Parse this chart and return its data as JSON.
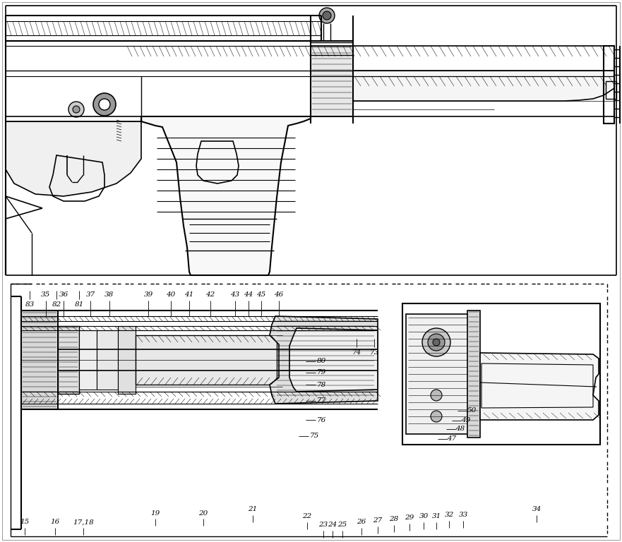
{
  "background_color": "#ffffff",
  "line_color": "#000000",
  "fig_width": 8.81,
  "fig_height": 7.68,
  "dpi": 100,
  "top_labels": [
    [
      "15",
      35,
      758,
      35,
      748
    ],
    [
      "16",
      78,
      758,
      78,
      748
    ],
    [
      "17,18",
      118,
      758,
      118,
      748
    ],
    [
      "19",
      220,
      745,
      220,
      735
    ],
    [
      "20",
      288,
      745,
      288,
      735
    ],
    [
      "21",
      358,
      740,
      358,
      730
    ],
    [
      "22",
      435,
      750,
      435,
      740
    ],
    [
      "23",
      458,
      762,
      458,
      752
    ],
    [
      "24",
      471,
      762,
      471,
      752
    ],
    [
      "25",
      485,
      762,
      485,
      752
    ],
    [
      "26",
      512,
      758,
      512,
      748
    ],
    [
      "27",
      535,
      756,
      535,
      746
    ],
    [
      "28",
      558,
      754,
      558,
      744
    ],
    [
      "29",
      580,
      752,
      580,
      742
    ],
    [
      "30",
      600,
      750,
      600,
      740
    ],
    [
      "31",
      618,
      750,
      618,
      740
    ],
    [
      "32",
      636,
      748,
      636,
      738
    ],
    [
      "33",
      656,
      748,
      656,
      738
    ],
    [
      "34",
      760,
      740,
      760,
      730
    ]
  ],
  "right_labels": [
    [
      "75",
      445,
      618
    ],
    [
      "76",
      455,
      595
    ],
    [
      "77",
      455,
      568
    ],
    [
      "78",
      455,
      545
    ],
    [
      "79",
      455,
      528
    ],
    [
      "80",
      455,
      512
    ]
  ],
  "left_labels": [
    [
      "83",
      42,
      432
    ],
    [
      "82",
      80,
      432
    ],
    [
      "81",
      112,
      432
    ]
  ],
  "mid_labels": [
    [
      "73",
      530,
      500
    ],
    [
      "74",
      505,
      500
    ]
  ],
  "bot_left_labels": [
    [
      "35",
      65,
      418
    ],
    [
      "36",
      90,
      418
    ],
    [
      "37",
      128,
      418
    ],
    [
      "38",
      155,
      418
    ],
    [
      "39",
      210,
      418
    ],
    [
      "40",
      242,
      418
    ],
    [
      "41",
      268,
      418
    ],
    [
      "42",
      298,
      418
    ],
    [
      "43",
      333,
      418
    ],
    [
      "44",
      352,
      418
    ],
    [
      "45",
      370,
      418
    ],
    [
      "46",
      395,
      418
    ]
  ],
  "bot_right_labels": [
    [
      "47",
      640,
      622
    ],
    [
      "48",
      652,
      608
    ],
    [
      "49",
      660,
      596
    ],
    [
      "50",
      668,
      582
    ]
  ]
}
